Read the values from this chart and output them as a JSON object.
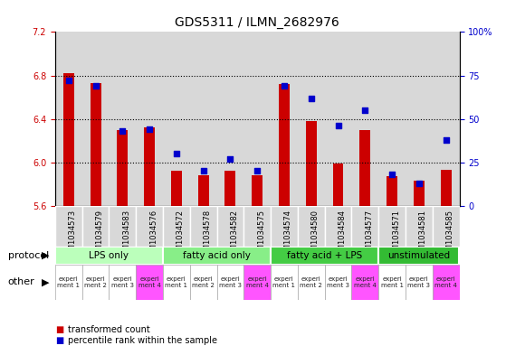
{
  "title": "GDS5311 / ILMN_2682976",
  "samples": [
    "GSM1034573",
    "GSM1034579",
    "GSM1034583",
    "GSM1034576",
    "GSM1034572",
    "GSM1034578",
    "GSM1034582",
    "GSM1034575",
    "GSM1034574",
    "GSM1034580",
    "GSM1034584",
    "GSM1034577",
    "GSM1034571",
    "GSM1034581",
    "GSM1034585"
  ],
  "transformed_count": [
    6.82,
    6.73,
    6.3,
    6.32,
    5.92,
    5.88,
    5.92,
    5.88,
    6.72,
    6.38,
    5.99,
    6.3,
    5.87,
    5.83,
    5.93
  ],
  "percentile_rank": [
    72,
    69,
    43,
    44,
    30,
    20,
    27,
    20,
    69,
    62,
    46,
    55,
    18,
    13,
    38
  ],
  "ylim_left": [
    5.6,
    7.2
  ],
  "ylim_right": [
    0,
    100
  ],
  "yticks_left": [
    5.6,
    6.0,
    6.4,
    6.8,
    7.2
  ],
  "yticks_right": [
    0,
    25,
    50,
    75,
    100
  ],
  "bar_color": "#cc0000",
  "scatter_color": "#0000cc",
  "protocol_groups": [
    {
      "label": "LPS only",
      "start": 0,
      "end": 4,
      "color": "#bbffbb"
    },
    {
      "label": "fatty acid only",
      "start": 4,
      "end": 8,
      "color": "#88ee88"
    },
    {
      "label": "fatty acid + LPS",
      "start": 8,
      "end": 12,
      "color": "#44cc44"
    },
    {
      "label": "unstimulated",
      "start": 12,
      "end": 15,
      "color": "#33bb33"
    }
  ],
  "other_colors_pattern": [
    0,
    0,
    0,
    1,
    0,
    0,
    0,
    1,
    0,
    0,
    0,
    1,
    0,
    0,
    1
  ],
  "other_white": "#ffffff",
  "other_pink": "#ff55ff",
  "other_labels": [
    "experi\nment 1",
    "experi\nment 2",
    "experi\nment 3",
    "experi\nment 4",
    "experi\nment 1",
    "experi\nment 2",
    "experi\nment 3",
    "experi\nment 4",
    "experi\nment 1",
    "experi\nment 2",
    "experi\nment 3",
    "experi\nment 4",
    "experi\nment 1",
    "experi\nment 3",
    "experi\nment 4"
  ],
  "cell_bg": "#d8d8d8",
  "plot_bg": "#ffffff",
  "protocol_label": "protocol",
  "other_label": "other",
  "legend_bar": "transformed count",
  "legend_scatter": "percentile rank within the sample",
  "bar_width": 0.4,
  "title_fontsize": 10,
  "tick_fontsize": 7,
  "label_fontsize": 8,
  "dotted_ticks": [
    6.0,
    6.4,
    6.8
  ]
}
